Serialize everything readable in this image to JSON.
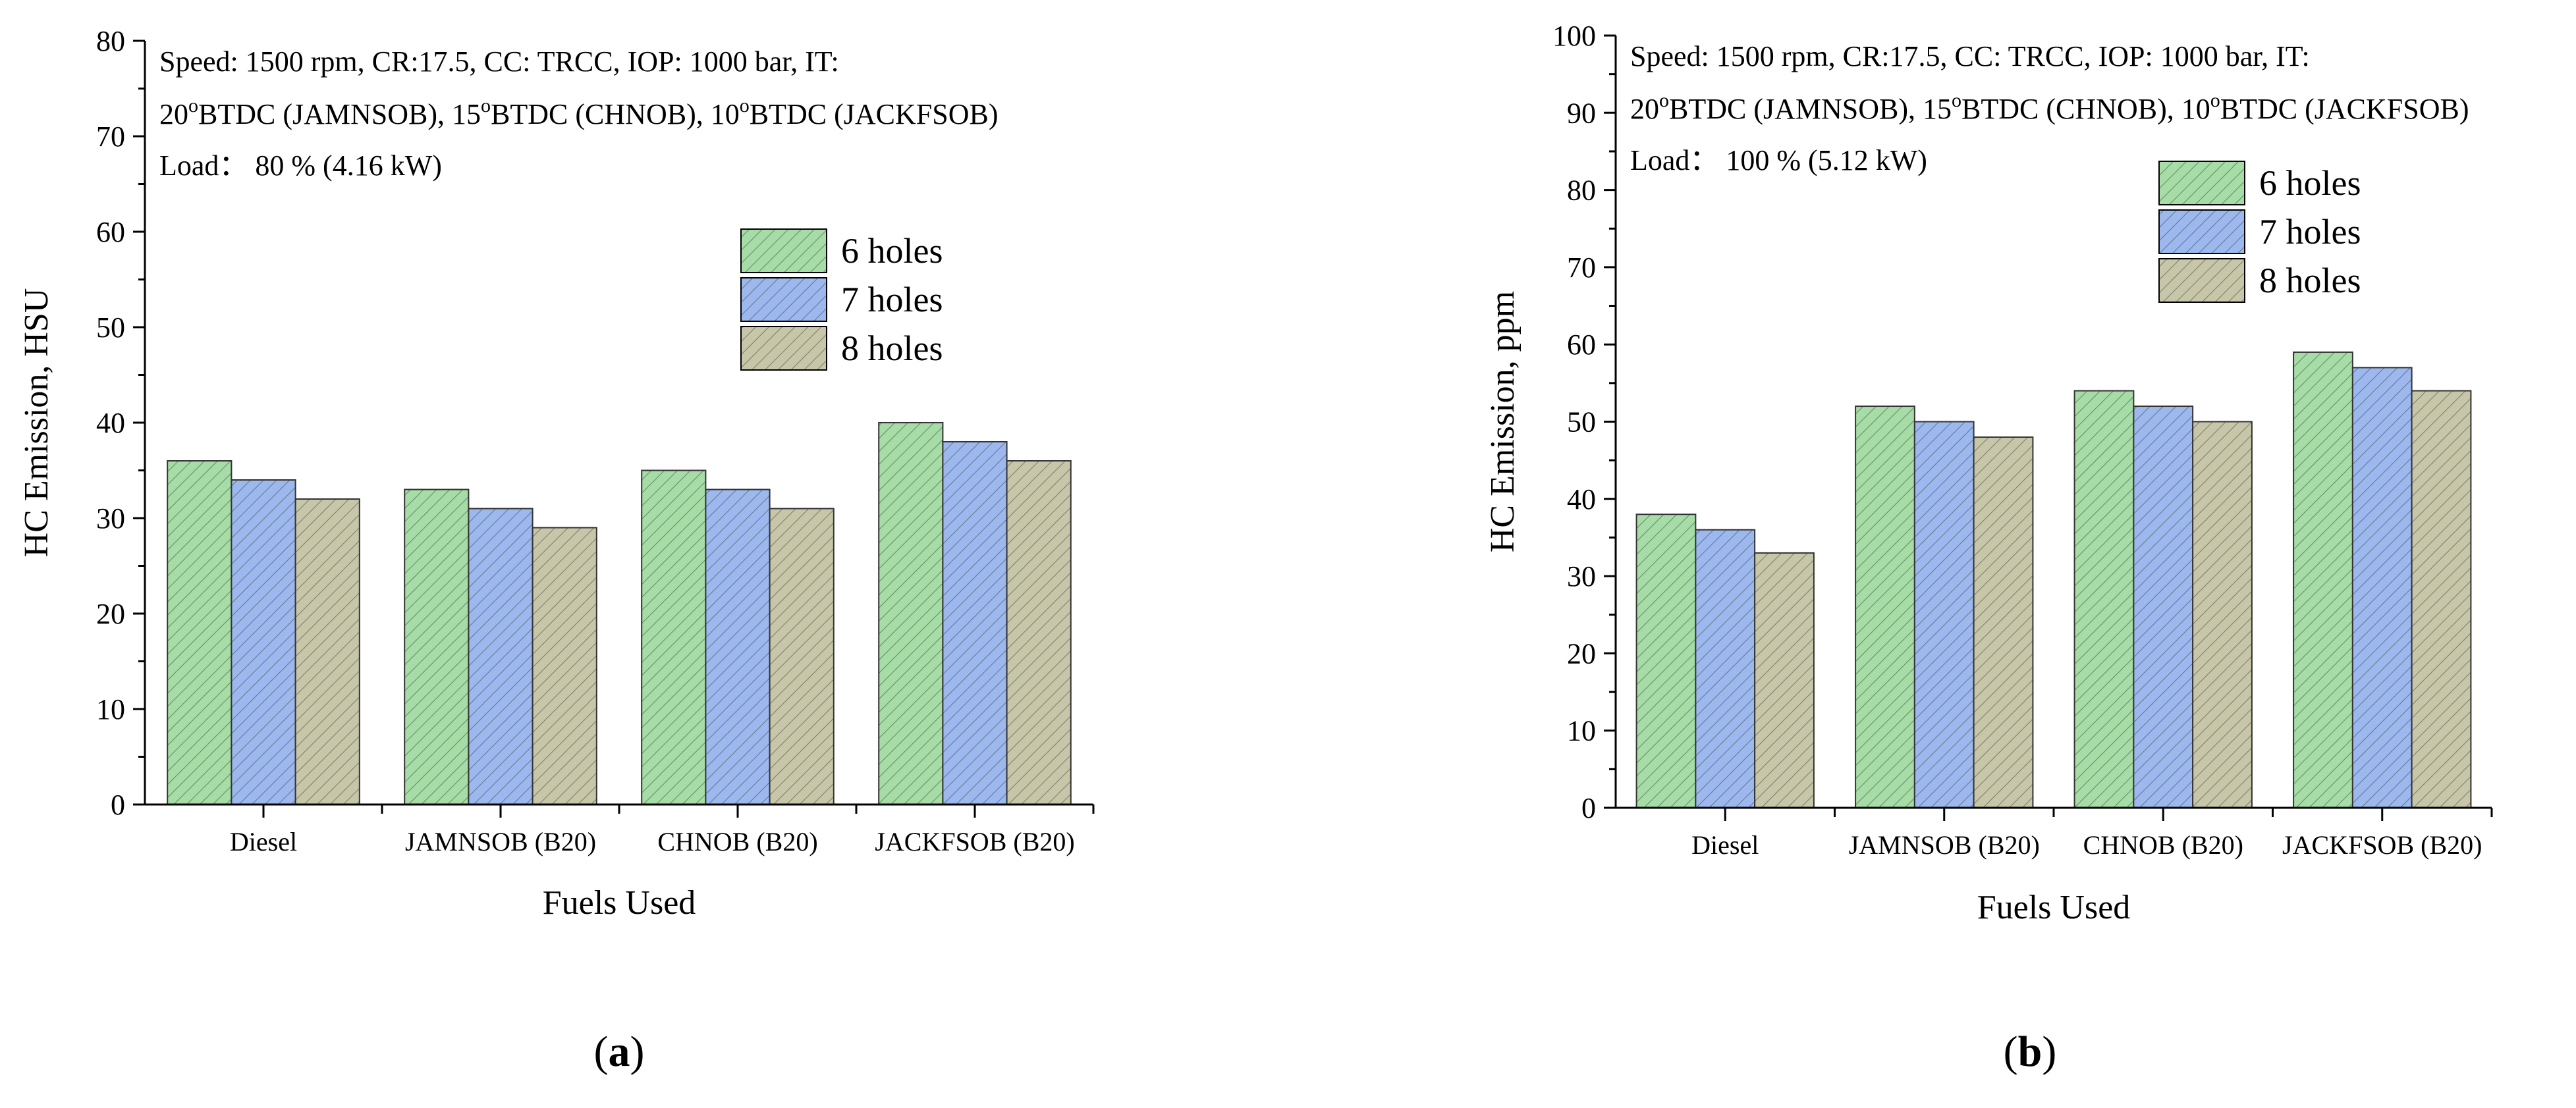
{
  "colors": {
    "6 holes": "#a6dca6",
    "7 holes": "#9cb8ee",
    "8 holes": "#c8c6a8",
    "hatch": "#4a5a4a"
  },
  "panel_labels": {
    "a": "a",
    "b": "b"
  },
  "chart_data": [
    {
      "type": "bar",
      "panel": "a",
      "title": "",
      "annotation": [
        "Speed: 1500 rpm, CR:17.5, CC: TRCC, IOP: 1000 bar, IT:",
        "20°BTDC (JAMNSOB), 15°BTDC (CHNOB), 10°BTDC (JACKFSOB)",
        "Load： 80 %  (4.16 kW)"
      ],
      "annotation_sup": {
        "prefix": [
          "20",
          "15",
          "10"
        ],
        "sup": "o",
        "parts": [
          "BTDC (JAMNSOB), ",
          "BTDC (CHNOB), ",
          "BTDC (JACKFSOB)"
        ]
      },
      "xlabel": "Fuels Used",
      "ylabel": "HC Emission, HSU",
      "ylim": [
        0,
        80
      ],
      "yticks": [
        0,
        10,
        20,
        30,
        40,
        50,
        60,
        70,
        80
      ],
      "categories": [
        "Diesel",
        "JAMNSOB (B20)",
        "CHNOB (B20)",
        "JACKFSOB (B20)"
      ],
      "series": [
        {
          "name": "6 holes",
          "values": [
            36,
            33,
            35,
            40
          ]
        },
        {
          "name": "7 holes",
          "values": [
            34,
            31,
            33,
            38
          ]
        },
        {
          "name": "8 holes",
          "values": [
            32,
            29,
            31,
            36
          ]
        }
      ],
      "legend_position": "upper-right"
    },
    {
      "type": "bar",
      "panel": "b",
      "title": "",
      "annotation": [
        "Speed: 1500 rpm, CR:17.5, CC: TRCC, IOP: 1000 bar, IT:",
        "20°BTDC (JAMNSOB), 15°BTDC (CHNOB), 10°BTDC (JACKFSOB)",
        "Load： 100 %  (5.12 kW)"
      ],
      "annotation_sup": {
        "prefix": [
          "20",
          "15",
          "10"
        ],
        "sup": "o",
        "parts": [
          "BTDC (JAMNSOB), ",
          "BTDC (CHNOB), ",
          "BTDC (JACKFSOB)"
        ]
      },
      "xlabel": "Fuels Used",
      "ylabel": "HC Emission, ppm",
      "ylim": [
        0,
        100
      ],
      "yticks": [
        0,
        10,
        20,
        30,
        40,
        50,
        60,
        70,
        80,
        90,
        100
      ],
      "categories": [
        "Diesel",
        "JAMNSOB (B20)",
        "CHNOB (B20)",
        "JACKFSOB (B20)"
      ],
      "series": [
        {
          "name": "6 holes",
          "values": [
            38,
            52,
            54,
            59
          ]
        },
        {
          "name": "7 holes",
          "values": [
            36,
            50,
            52,
            57
          ]
        },
        {
          "name": "8 holes",
          "values": [
            33,
            48,
            50,
            54
          ]
        }
      ],
      "legend_position": "upper-middle"
    }
  ]
}
